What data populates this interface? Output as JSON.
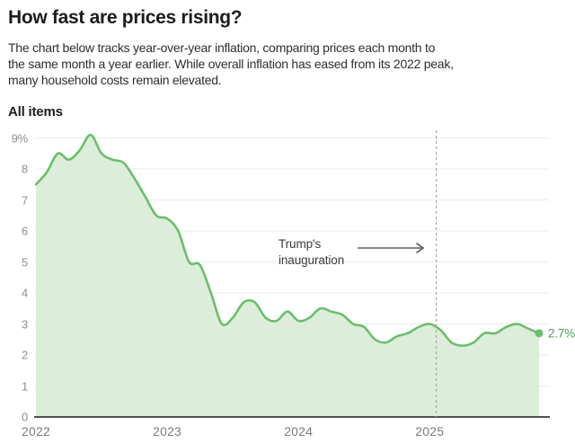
{
  "header": {
    "title": "How fast are prices rising?",
    "description_lines": [
      "The chart below tracks year-over-year inflation, comparing prices each month to",
      "the same month a year earlier. While overall inflation has eased from its 2022 peak,",
      "many household costs remain elevated."
    ]
  },
  "chart_data": {
    "type": "area",
    "series_label": "All items",
    "unit": "percent, year-over-year",
    "months": [
      "2022-01",
      "2022-02",
      "2022-03",
      "2022-04",
      "2022-05",
      "2022-06",
      "2022-07",
      "2022-08",
      "2022-09",
      "2022-10",
      "2022-11",
      "2022-12",
      "2023-01",
      "2023-02",
      "2023-03",
      "2023-04",
      "2023-05",
      "2023-06",
      "2023-07",
      "2023-08",
      "2023-09",
      "2023-10",
      "2023-11",
      "2023-12",
      "2024-01",
      "2024-02",
      "2024-03",
      "2024-04",
      "2024-05",
      "2024-06",
      "2024-07",
      "2024-08",
      "2024-09",
      "2024-10",
      "2024-11",
      "2024-12",
      "2025-01",
      "2025-02",
      "2025-03",
      "2025-04",
      "2025-05",
      "2025-06",
      "2025-07",
      "2025-08",
      "2025-09",
      "2025-10",
      "2025-11"
    ],
    "values": [
      7.5,
      7.9,
      8.5,
      8.3,
      8.6,
      9.1,
      8.5,
      8.3,
      8.2,
      7.7,
      7.1,
      6.5,
      6.4,
      6.0,
      5.0,
      4.9,
      4.0,
      3.0,
      3.2,
      3.7,
      3.7,
      3.2,
      3.1,
      3.4,
      3.1,
      3.2,
      3.5,
      3.4,
      3.3,
      3.0,
      2.9,
      2.5,
      2.4,
      2.6,
      2.7,
      2.9,
      3.0,
      2.8,
      2.4,
      2.3,
      2.4,
      2.7,
      2.7,
      2.9,
      3.0,
      2.85,
      2.7
    ],
    "ylim": [
      0,
      9
    ],
    "grid": true,
    "legend": "none",
    "yticks": [
      {
        "label": "9%",
        "value": 9
      },
      {
        "label": "8",
        "value": 8
      },
      {
        "label": "7",
        "value": 7
      },
      {
        "label": "6",
        "value": 6
      },
      {
        "label": "5",
        "value": 5
      },
      {
        "label": "4",
        "value": 4
      },
      {
        "label": "3",
        "value": 3
      },
      {
        "label": "2",
        "value": 2
      },
      {
        "label": "1",
        "value": 1
      },
      {
        "label": "0",
        "value": 0
      }
    ],
    "xticks": [
      {
        "label": "2022",
        "month_index": 0
      },
      {
        "label": "2023",
        "month_index": 12
      },
      {
        "label": "2024",
        "month_index": 24
      },
      {
        "label": "2025",
        "month_index": 36
      }
    ],
    "annotation": {
      "line1": "Trump's",
      "line2": "inauguration",
      "event_month_index": 36.6
    },
    "end_label": "2.7%",
    "colors": {
      "line": "#6cbe6c",
      "fill": "#dcedda",
      "dot": "#6cbe6c",
      "end_label": "#4d9f51",
      "dashed_line": "#a8a8a8",
      "gridline": "#ececec",
      "axis_line": "#515151"
    }
  }
}
